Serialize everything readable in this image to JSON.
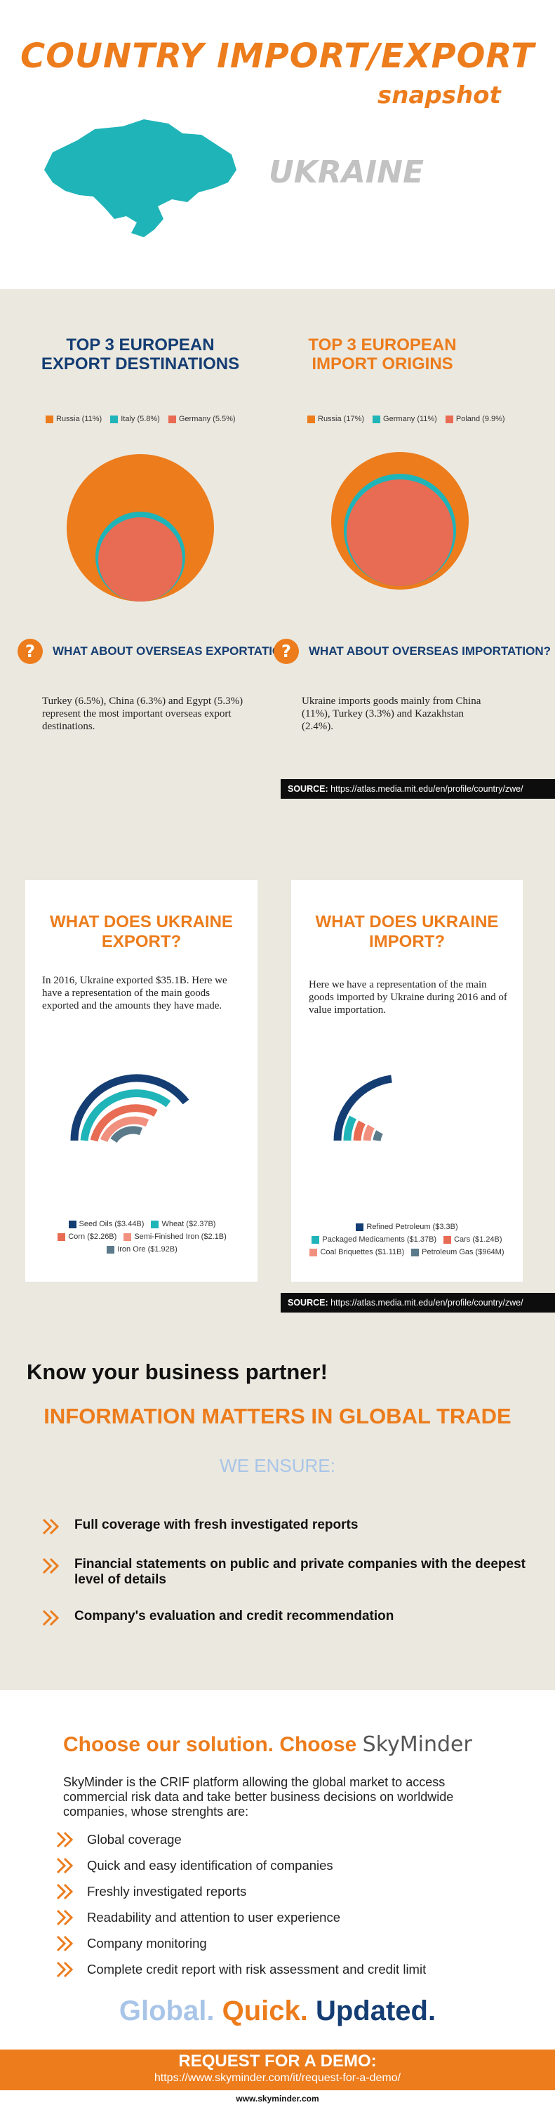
{
  "header": {
    "title": "COUNTRY IMPORT/EXPORT",
    "subtitle": "snapshot",
    "country": "UKRAINE"
  },
  "export_destinations": {
    "title_line1": "TOP 3 EUROPEAN",
    "title_line2": "EXPORT DESTINATIONS",
    "legend": [
      {
        "label": "Russia (11%)",
        "color": "#ec7c1c"
      },
      {
        "label": "Italy (5.8%)",
        "color": "#1fb4b8"
      },
      {
        "label": "Germany (5.5%)",
        "color": "#e86b53"
      }
    ],
    "question": "WHAT ABOUT OVERSEAS EXPORTATION?",
    "text": "Turkey (6.5%), China (6.3%) and Egypt (5.3%)  represent the most important overseas export destinations."
  },
  "import_origins": {
    "title_line1": "TOP 3 EUROPEAN",
    "title_line2": "IMPORT ORIGINS",
    "legend": [
      {
        "label": "Russia (17%)",
        "color": "#ec7c1c"
      },
      {
        "label": "Germany (11%)",
        "color": "#1fb4b8"
      },
      {
        "label": "Poland (9.9%)",
        "color": "#e86b53"
      }
    ],
    "question": "WHAT ABOUT OVERSEAS IMPORTATION?",
    "text": "Ukraine imports goods mainly from China (11%), Turkey (3.3%) and Kazakhstan (2.4%)."
  },
  "source": {
    "label": "SOURCE:",
    "url": "https://atlas.media.mit.edu/en/profile/country/zwe/"
  },
  "export_goods": {
    "title_line1": "WHAT DOES UKRAINE",
    "title_line2": "EXPORT?",
    "text": "In 2016,  Ukraine exported $35.1B.  Here we have a representation of the main goods exported and the amounts they have made.",
    "legend": [
      {
        "label": "Seed Oils ($3.44B)",
        "color": "#143d73"
      },
      {
        "label": "Wheat ($2.37B)",
        "color": "#1fb4b8"
      },
      {
        "label": "Corn ($2.26B)",
        "color": "#e86b53"
      },
      {
        "label": "Semi-Finished Iron ($2.1B)",
        "color": "#f1907e"
      },
      {
        "label": "Iron Ore ($1.92B)",
        "color": "#5b7a8a"
      }
    ]
  },
  "import_goods": {
    "title_line1": "WHAT DOES UKRAINE",
    "title_line2": "IMPORT?",
    "text": "Here we have a representation of the main goods imported by Ukraine  during 2016 and of value importation.",
    "legend": [
      {
        "label": "Refined Petroleum ($3.3B)",
        "color": "#143d73"
      },
      {
        "label": "Packaged Medicaments ($1.37B)",
        "color": "#1fb4b8"
      },
      {
        "label": "Cars ($1.24B)",
        "color": "#e86b53"
      },
      {
        "label": "Coal Briquettes ($1.11B)",
        "color": "#f1907e"
      },
      {
        "label": "Petroleum Gas ($964M)",
        "color": "#5b7a8a"
      }
    ]
  },
  "chart_data": [
    {
      "type": "pie",
      "title": "TOP 3 EUROPEAN EXPORT DESTINATIONS",
      "categories": [
        "Russia",
        "Italy",
        "Germany"
      ],
      "values": [
        11,
        5.8,
        5.5
      ],
      "unit": "%"
    },
    {
      "type": "pie",
      "title": "TOP 3 EUROPEAN IMPORT ORIGINS",
      "categories": [
        "Russia",
        "Germany",
        "Poland"
      ],
      "values": [
        17,
        11,
        9.9
      ],
      "unit": "%"
    },
    {
      "type": "bar",
      "title": "WHAT DOES UKRAINE EXPORT?",
      "categories": [
        "Seed Oils",
        "Wheat",
        "Corn",
        "Semi-Finished Iron",
        "Iron Ore"
      ],
      "values": [
        3.44,
        2.37,
        2.26,
        2.1,
        1.92
      ],
      "unit": "$B"
    },
    {
      "type": "bar",
      "title": "WHAT DOES UKRAINE IMPORT?",
      "categories": [
        "Refined Petroleum",
        "Packaged Medicaments",
        "Cars",
        "Coal Briquettes",
        "Petroleum Gas"
      ],
      "values": [
        3.3,
        1.37,
        1.24,
        1.11,
        0.964
      ],
      "unit": "$B"
    }
  ],
  "promo": {
    "know": "Know your business partner!",
    "info": "INFORMATION MATTERS IN GLOBAL TRADE",
    "ensure": "WE ENSURE:",
    "bullets": [
      "Full coverage with fresh investigated reports",
      "Financial statements on public and private companies with the deepest level of details",
      "Company's evaluation and credit recommendation"
    ]
  },
  "solution": {
    "choose": "Choose our solution. Choose ",
    "brand": "SkyMinder",
    "description": "SkyMinder is the CRIF platform allowing the global market to access commercial risk data and take better business decisions on worldwide companies, whose strenghts are:",
    "features": [
      "Global coverage",
      "Quick and easy identification of companies",
      "Freshly investigated reports",
      "Readability and attention to user experience",
      "Company monitoring",
      "Complete credit report with risk assessment and credit limit"
    ],
    "slogan_1": "Global.",
    "slogan_2": "Quick.",
    "slogan_3": "Updated."
  },
  "demo": {
    "heading": "REQUEST FOR A DEMO:",
    "url": "https://www.skyminder.com/it/request-for-a-demo/"
  },
  "footer": {
    "site": "www.skyminder.com"
  }
}
